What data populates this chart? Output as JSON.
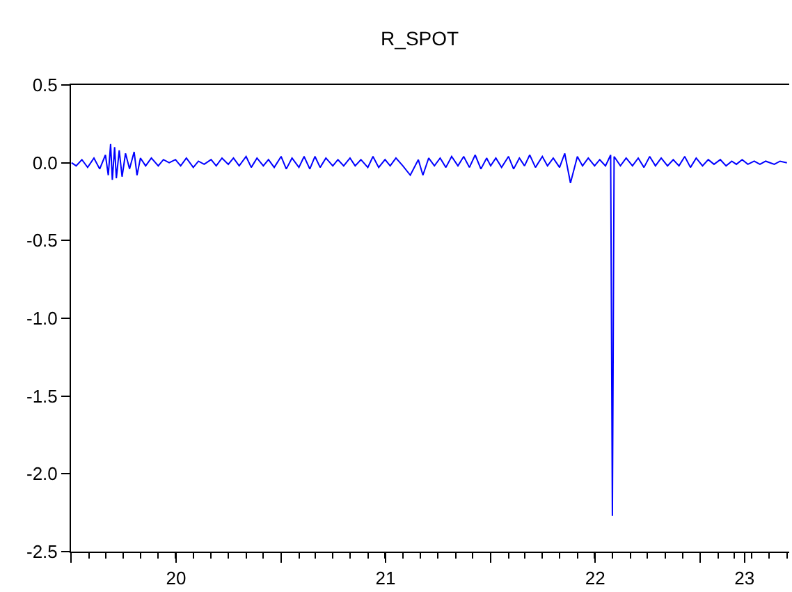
{
  "chart_data": {
    "type": "line",
    "title": "R_SPOT",
    "x": [
      "2020-01-02",
      "2020-01-10",
      "2020-01-20",
      "2020-01-30",
      "2020-02-10",
      "2020-02-20",
      "2020-03-01",
      "2020-03-06",
      "2020-03-10",
      "2020-03-13",
      "2020-03-17",
      "2020-03-20",
      "2020-03-25",
      "2020-03-30",
      "2020-04-05",
      "2020-04-12",
      "2020-04-20",
      "2020-04-25",
      "2020-05-01",
      "2020-05-10",
      "2020-05-20",
      "2020-06-01",
      "2020-06-10",
      "2020-06-20",
      "2020-07-01",
      "2020-07-10",
      "2020-07-20",
      "2020-08-01",
      "2020-08-10",
      "2020-08-20",
      "2020-09-01",
      "2020-09-10",
      "2020-09-20",
      "2020-10-01",
      "2020-10-10",
      "2020-10-20",
      "2020-11-01",
      "2020-11-10",
      "2020-11-20",
      "2020-12-01",
      "2020-12-10",
      "2020-12-20",
      "2021-01-01",
      "2021-01-10",
      "2021-01-20",
      "2021-02-01",
      "2021-02-10",
      "2021-02-20",
      "2021-03-01",
      "2021-03-10",
      "2021-03-20",
      "2021-04-01",
      "2021-04-10",
      "2021-04-20",
      "2021-05-01",
      "2021-05-10",
      "2021-05-20",
      "2021-06-01",
      "2021-06-10",
      "2021-06-20",
      "2021-07-01",
      "2021-07-10",
      "2021-07-20",
      "2021-08-01",
      "2021-08-14",
      "2021-08-28",
      "2021-09-05",
      "2021-09-15",
      "2021-09-25",
      "2021-10-05",
      "2021-10-15",
      "2021-10-25",
      "2021-11-05",
      "2021-11-15",
      "2021-11-25",
      "2021-12-05",
      "2021-12-15",
      "2021-12-25",
      "2022-01-01",
      "2022-01-10",
      "2022-01-20",
      "2022-02-01",
      "2022-02-10",
      "2022-02-20",
      "2022-03-01",
      "2022-03-10",
      "2022-03-20",
      "2022-04-01",
      "2022-04-10",
      "2022-04-20",
      "2022-05-01",
      "2022-05-10",
      "2022-05-20",
      "2022-06-01",
      "2022-06-10",
      "2022-06-20",
      "2022-07-01",
      "2022-07-10",
      "2022-07-20",
      "2022-07-29",
      "2022-08-01",
      "2022-08-04",
      "2022-08-15",
      "2022-08-25",
      "2022-09-05",
      "2022-09-15",
      "2022-09-25",
      "2022-10-05",
      "2022-10-15",
      "2022-10-25",
      "2022-11-05",
      "2022-11-15",
      "2022-11-25",
      "2022-12-05",
      "2022-12-15",
      "2022-12-25",
      "2023-01-05",
      "2023-01-15",
      "2023-01-25",
      "2023-02-05",
      "2023-02-15",
      "2023-02-25",
      "2023-03-05",
      "2023-03-15",
      "2023-03-25",
      "2023-04-05",
      "2023-04-15",
      "2023-04-25",
      "2023-05-10",
      "2023-05-20",
      "2023-06-01"
    ],
    "series": [
      {
        "color": "#0000ff",
        "values": [
          0.0,
          -0.02,
          0.02,
          -0.03,
          0.03,
          -0.04,
          0.05,
          -0.08,
          0.12,
          -0.11,
          0.1,
          -0.1,
          0.08,
          -0.09,
          0.06,
          -0.04,
          0.07,
          -0.08,
          0.03,
          -0.02,
          0.03,
          -0.02,
          0.02,
          0.0,
          0.02,
          -0.02,
          0.03,
          -0.03,
          0.01,
          -0.01,
          0.02,
          -0.02,
          0.03,
          -0.01,
          0.03,
          -0.02,
          0.04,
          -0.03,
          0.03,
          -0.02,
          0.02,
          -0.03,
          0.04,
          -0.04,
          0.03,
          -0.03,
          0.04,
          -0.04,
          0.04,
          -0.03,
          0.03,
          -0.02,
          0.02,
          -0.02,
          0.03,
          -0.02,
          0.02,
          -0.03,
          0.04,
          -0.03,
          0.02,
          -0.02,
          0.03,
          -0.02,
          -0.08,
          0.02,
          -0.08,
          0.03,
          -0.02,
          0.03,
          -0.03,
          0.04,
          -0.02,
          0.04,
          -0.03,
          0.05,
          -0.04,
          0.03,
          -0.02,
          0.03,
          -0.03,
          0.04,
          -0.04,
          0.03,
          -0.02,
          0.05,
          -0.03,
          0.04,
          -0.02,
          0.03,
          -0.03,
          0.06,
          -0.13,
          0.04,
          -0.02,
          0.03,
          -0.02,
          0.02,
          -0.02,
          0.05,
          -2.27,
          0.04,
          -0.02,
          0.03,
          -0.02,
          0.03,
          -0.03,
          0.04,
          -0.02,
          0.03,
          -0.02,
          0.02,
          -0.02,
          0.04,
          -0.03,
          0.03,
          -0.02,
          0.02,
          -0.01,
          0.02,
          -0.02,
          0.01,
          -0.01,
          0.02,
          -0.01,
          0.01,
          -0.01,
          0.01,
          -0.01,
          0.01,
          0.0
        ]
      }
    ],
    "xlim": [
      "2020-01-01",
      "2023-06-05"
    ],
    "xticks": [
      {
        "value": "2020-01-01",
        "label": null
      },
      {
        "value": "2020-07-02",
        "label": "20"
      },
      {
        "value": "2021-01-01",
        "label": null
      },
      {
        "value": "2021-07-02",
        "label": "21"
      },
      {
        "value": "2022-01-01",
        "label": null
      },
      {
        "value": "2022-07-02",
        "label": "22"
      },
      {
        "value": "2023-01-01",
        "label": null
      },
      {
        "value": "2023-03-19",
        "label": "23"
      }
    ],
    "ylim": [
      -2.5,
      0.5
    ],
    "yticks": [
      0.5,
      {
        "value": 0,
        "label": "0.0"
      },
      -0.5,
      {
        "value": -1,
        "label": "-1.0"
      },
      -1.5,
      {
        "value": -2,
        "label": "-2.0"
      },
      -2.5
    ],
    "legend": false,
    "line_style": "solid"
  }
}
